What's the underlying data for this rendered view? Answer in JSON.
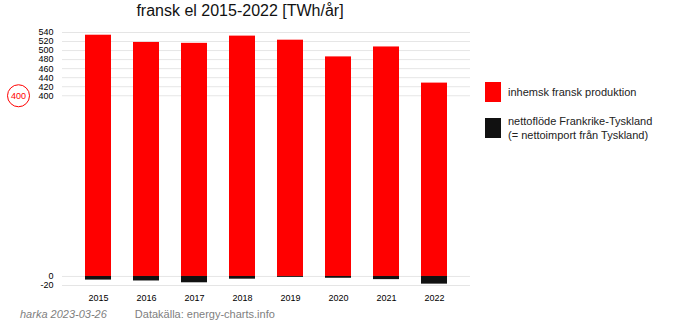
{
  "chart_data": {
    "type": "bar",
    "title": "fransk el 2015-2022 [TWh/år]",
    "categories": [
      "2015",
      "2016",
      "2017",
      "2018",
      "2019",
      "2020",
      "2021",
      "2022"
    ],
    "series": [
      {
        "name": "inhemsk fransk produktion",
        "color": "#ff0000",
        "values": [
          534,
          518,
          516,
          532,
          523,
          486,
          508,
          428
        ]
      },
      {
        "name": "nettoflöde Frankrike-Tyskland\n(= nettoimport från Tyskland)",
        "color": "#111111",
        "values": [
          -8,
          -10,
          -14,
          -6,
          -2,
          -4,
          -7,
          -17
        ]
      }
    ],
    "ylim": [
      -20,
      540
    ],
    "yticks": [
      -20,
      0,
      400,
      420,
      440,
      460,
      480,
      500,
      520,
      540
    ],
    "grid": true,
    "legend": "right",
    "annotations": [
      {
        "text": "400",
        "y": 400
      }
    ],
    "footer": [
      "harka 2023-03-26",
      "Datakälla: energy-charts.info"
    ]
  }
}
